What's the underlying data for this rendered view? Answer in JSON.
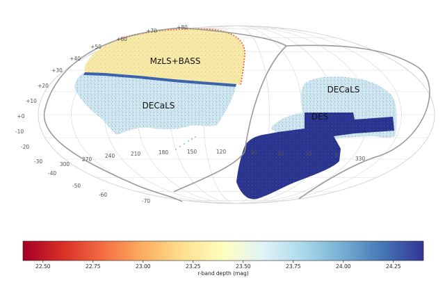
{
  "chart_data": {
    "type": "heatmap",
    "projection": "mollweide",
    "grid": true,
    "dec_ticks": [
      "+80",
      "+70",
      "+60",
      "+50",
      "+40",
      "+30",
      "+20",
      "+10",
      "+0",
      "-10",
      "-20",
      "-30",
      "-40",
      "-50",
      "-60",
      "-70"
    ],
    "ra_ticks": [
      "300",
      "270",
      "240",
      "210",
      "180",
      "150",
      "120",
      "90",
      "60",
      "30",
      "0",
      "330"
    ],
    "regions": [
      {
        "label": "MzLS+BASS",
        "depth_mag": 23.3
      },
      {
        "label": "DECaLS",
        "depth_mag": 23.95
      },
      {
        "label": "DECaLS",
        "depth_mag": 23.95
      },
      {
        "label": "DES",
        "depth_mag": 24.4
      }
    ],
    "colorbar": {
      "label": "r-band depth (mag)",
      "range": [
        22.4,
        24.4
      ],
      "ticks": [
        "22.50",
        "22.75",
        "23.00",
        "23.25",
        "23.50",
        "23.75",
        "24.00",
        "24.25"
      ],
      "colormap": "RdYlBu",
      "colors": [
        "#a50026",
        "#d73027",
        "#f46d43",
        "#fdae61",
        "#fee090",
        "#ffffbf",
        "#e0f3f8",
        "#abd9e9",
        "#74add1",
        "#4575b4",
        "#313695"
      ]
    }
  }
}
